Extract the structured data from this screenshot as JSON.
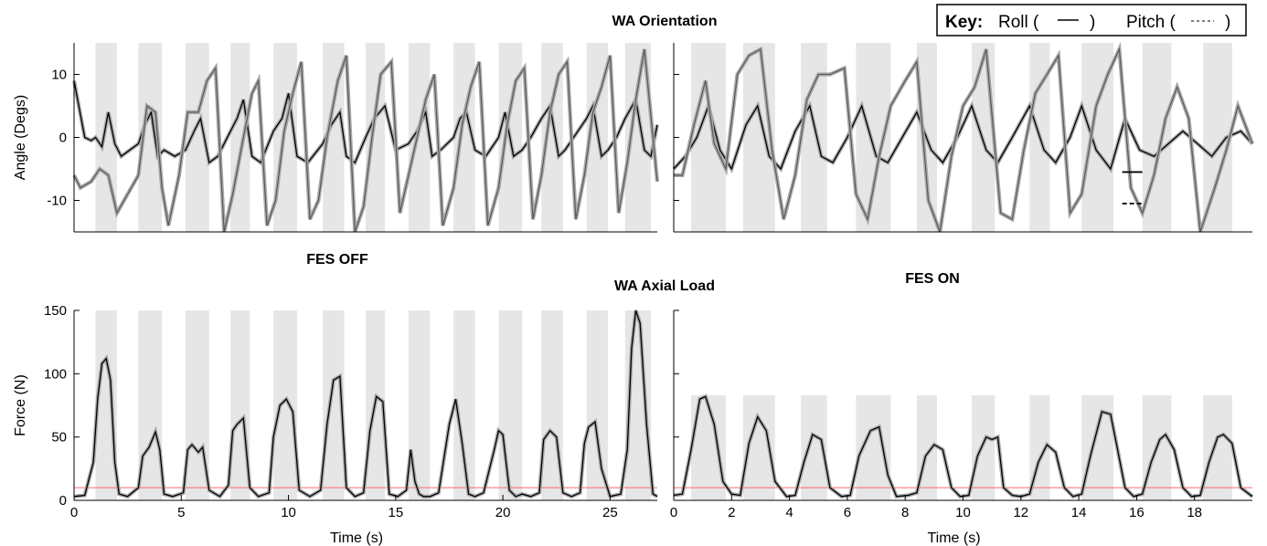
{
  "figure": {
    "orientation_title": "WA Orientation",
    "load_title": "WA Axial Load",
    "fes_off_label": "FES OFF",
    "fes_on_label": "FES ON",
    "key": {
      "label": "Key:",
      "roll_text": "Roll (",
      "roll_close": ")",
      "pitch_text": "Pitch (",
      "pitch_close": ")"
    },
    "colors": {
      "stance_band": "#e6e6e6",
      "roll": "#000000",
      "pitch": "#555555",
      "confidence_band": "#a8a8a8",
      "threshold": "#ff6666"
    }
  },
  "chart_data": [
    {
      "id": "orientation-off",
      "type": "line",
      "ylabel": "Angle (Degs)",
      "xlabel": "",
      "xlim": [
        0,
        27.2
      ],
      "ylim": [
        -15,
        15
      ],
      "yticks": [
        -10,
        0,
        10
      ],
      "xticks": [],
      "stance_bands": [
        [
          1.0,
          2.0
        ],
        [
          3.0,
          4.1
        ],
        [
          5.2,
          6.3
        ],
        [
          7.3,
          8.2
        ],
        [
          9.3,
          10.4
        ],
        [
          11.6,
          12.6
        ],
        [
          13.6,
          14.5
        ],
        [
          15.6,
          16.6
        ],
        [
          17.7,
          18.7
        ],
        [
          19.8,
          20.9
        ],
        [
          21.8,
          22.8
        ],
        [
          23.9,
          24.9
        ],
        [
          25.7,
          26.9
        ]
      ],
      "series": [
        {
          "name": "Roll",
          "x": [
            0,
            0.5,
            0.8,
            1.0,
            1.3,
            1.6,
            1.9,
            2.2,
            2.6,
            3.0,
            3.3,
            3.6,
            3.9,
            4.2,
            4.7,
            5.2,
            5.6,
            5.9,
            6.3,
            6.7,
            7.3,
            7.6,
            7.9,
            8.3,
            8.7,
            9.3,
            9.7,
            10.0,
            10.4,
            10.9,
            11.6,
            12.0,
            12.4,
            12.7,
            13.1,
            13.6,
            14.0,
            14.5,
            15.0,
            15.6,
            16.0,
            16.4,
            16.7,
            17.1,
            17.7,
            18.0,
            18.3,
            18.7,
            19.2,
            19.8,
            20.1,
            20.5,
            20.9,
            21.3,
            21.8,
            22.2,
            22.6,
            22.9,
            23.3,
            23.9,
            24.2,
            24.6,
            24.9,
            25.3,
            25.7,
            26.2,
            26.6,
            26.9,
            27.2
          ],
          "y": [
            9,
            0,
            -0.5,
            0,
            -1.5,
            4,
            -1,
            -3,
            -2,
            -1,
            2,
            4,
            -3,
            -2,
            -3,
            -2,
            1,
            3,
            -4,
            -3,
            1,
            3,
            6,
            -3,
            -4,
            1,
            3,
            7,
            -3,
            -4,
            -1,
            2,
            4,
            -3,
            -4,
            0,
            3,
            5,
            -2,
            -1,
            1,
            4,
            -3,
            -2,
            0,
            3,
            4,
            -2,
            -3,
            0,
            4,
            -3,
            -2,
            0,
            3,
            5,
            -3,
            -2,
            0,
            3,
            5,
            -3,
            -2,
            0,
            3,
            6,
            -2,
            -3,
            2
          ]
        },
        {
          "name": "Pitch",
          "x": [
            0,
            0.3,
            0.8,
            1.2,
            1.6,
            2.0,
            2.5,
            3.0,
            3.4,
            3.8,
            4.1,
            4.4,
            4.9,
            5.3,
            5.8,
            6.2,
            6.6,
            7.0,
            7.4,
            7.9,
            8.3,
            8.6,
            9.0,
            9.4,
            9.8,
            10.2,
            10.6,
            11.0,
            11.4,
            11.8,
            12.3,
            12.7,
            13.1,
            13.5,
            13.9,
            14.3,
            14.8,
            15.2,
            15.6,
            16.0,
            16.4,
            16.8,
            17.2,
            17.7,
            18.1,
            18.5,
            18.9,
            19.3,
            19.8,
            20.2,
            20.6,
            21.0,
            21.4,
            21.8,
            22.2,
            22.6,
            23.0,
            23.4,
            23.8,
            24.2,
            24.6,
            25.0,
            25.4,
            25.8,
            26.2,
            26.6,
            27.0,
            27.2
          ],
          "y": [
            -6,
            -8,
            -7,
            -5,
            -6,
            -12,
            -9,
            -6,
            5,
            4,
            -8,
            -14,
            -6,
            4,
            4,
            9,
            11,
            -15,
            -9,
            0,
            7,
            9,
            -14,
            -10,
            1,
            7,
            12,
            -13,
            -10,
            0,
            9,
            13,
            -15,
            -11,
            0,
            10,
            12,
            -12,
            -6,
            0,
            6,
            10,
            -14,
            -8,
            2,
            8,
            12,
            -14,
            -8,
            2,
            9,
            11,
            -13,
            -6,
            4,
            10,
            12,
            -13,
            -6,
            4,
            8,
            13,
            -12,
            -4,
            6,
            14,
            0,
            -7
          ]
        }
      ]
    },
    {
      "id": "orientation-on",
      "type": "line",
      "ylabel": "",
      "xlabel": "",
      "xlim": [
        0,
        20.0
      ],
      "ylim": [
        -15,
        15
      ],
      "yticks": [
        -10,
        0,
        10
      ],
      "xticks": [],
      "stance_bands": [
        [
          0.6,
          1.8
        ],
        [
          2.4,
          3.5
        ],
        [
          4.4,
          5.3
        ],
        [
          6.3,
          7.5
        ],
        [
          8.4,
          9.1
        ],
        [
          10.3,
          11.1
        ],
        [
          12.3,
          13.0
        ],
        [
          14.1,
          15.2
        ],
        [
          16.2,
          17.2
        ],
        [
          18.3,
          19.3
        ]
      ],
      "series": [
        {
          "name": "Roll",
          "x": [
            0,
            0.4,
            0.8,
            1.2,
            1.6,
            2.0,
            2.5,
            2.9,
            3.3,
            3.7,
            4.2,
            4.7,
            5.1,
            5.5,
            6.0,
            6.5,
            7.0,
            7.4,
            7.9,
            8.4,
            8.9,
            9.3,
            9.8,
            10.3,
            10.8,
            11.2,
            11.7,
            12.3,
            12.8,
            13.2,
            13.7,
            14.1,
            14.6,
            15.1,
            15.6,
            16.1,
            16.6,
            17.1,
            17.6,
            18.1,
            18.6,
            19.1,
            19.6,
            20.0
          ],
          "y": [
            -5,
            -3,
            0,
            5,
            -2,
            -5,
            2,
            5,
            -3,
            -5,
            1,
            5,
            -3,
            -4,
            0,
            5,
            -3,
            -4,
            0,
            4,
            -2,
            -4,
            0,
            5,
            -2,
            -4,
            0,
            5,
            -2,
            -4,
            0,
            5,
            -2,
            -5,
            3,
            -2,
            -3,
            -1,
            1,
            -1,
            -3,
            0,
            1,
            -1
          ]
        },
        {
          "name": "Pitch",
          "x": [
            0,
            0.3,
            0.7,
            1.1,
            1.4,
            1.8,
            2.2,
            2.6,
            3.0,
            3.4,
            3.8,
            4.2,
            4.6,
            5.0,
            5.4,
            5.9,
            6.3,
            6.7,
            7.1,
            7.5,
            8.0,
            8.4,
            8.8,
            9.2,
            9.6,
            10.0,
            10.4,
            10.8,
            11.3,
            11.7,
            12.1,
            12.5,
            12.9,
            13.3,
            13.7,
            14.1,
            14.6,
            15.0,
            15.4,
            15.8,
            16.2,
            16.6,
            17.0,
            17.4,
            17.8,
            18.2,
            18.7,
            19.1,
            19.5,
            20.0
          ],
          "y": [
            -6,
            -6,
            2,
            9,
            -1,
            -5,
            10,
            13,
            14,
            -2,
            -13,
            -6,
            6,
            10,
            10,
            11,
            -9,
            -13,
            -3,
            5,
            9,
            12,
            -10,
            -15,
            -3,
            5,
            8,
            14,
            -12,
            -13,
            -2,
            7,
            10,
            13,
            -12,
            -9,
            5,
            10,
            14,
            -8,
            -12,
            -6,
            3,
            8,
            3,
            -15,
            -8,
            -2,
            5,
            -1
          ]
        }
      ],
      "annotation_marks": [
        {
          "kind": "roll",
          "x": 15.85,
          "y": -5.5
        },
        {
          "kind": "pitch",
          "x": 15.85,
          "y": -10.5
        }
      ]
    },
    {
      "id": "load-off",
      "type": "line",
      "ylabel": "Force (N)",
      "xlabel": "Time (s)",
      "xlim": [
        0,
        27.2
      ],
      "ylim": [
        0,
        150
      ],
      "yticks": [
        0,
        50,
        100,
        150
      ],
      "xticks": [
        0,
        5,
        10,
        15,
        20,
        25
      ],
      "threshold": 10,
      "stance_bands": [
        [
          1.0,
          2.0
        ],
        [
          3.0,
          4.1
        ],
        [
          5.2,
          6.3
        ],
        [
          7.3,
          8.2
        ],
        [
          9.3,
          10.4
        ],
        [
          11.6,
          12.6
        ],
        [
          13.6,
          14.5
        ],
        [
          15.6,
          16.6
        ],
        [
          17.7,
          18.7
        ],
        [
          19.8,
          20.9
        ],
        [
          21.8,
          22.8
        ],
        [
          23.9,
          24.9
        ],
        [
          25.7,
          26.9
        ]
      ],
      "series": [
        {
          "name": "Force",
          "x": [
            0,
            0.5,
            0.9,
            1.1,
            1.3,
            1.5,
            1.7,
            1.9,
            2.1,
            2.5,
            3.0,
            3.2,
            3.5,
            3.8,
            4.0,
            4.2,
            4.6,
            5.1,
            5.3,
            5.5,
            5.8,
            6.0,
            6.3,
            6.8,
            7.2,
            7.4,
            7.6,
            7.9,
            8.2,
            8.6,
            9.1,
            9.3,
            9.6,
            9.9,
            10.2,
            10.5,
            11.0,
            11.5,
            11.8,
            12.1,
            12.4,
            12.7,
            13.1,
            13.5,
            13.8,
            14.1,
            14.4,
            14.7,
            15.1,
            15.5,
            15.7,
            15.9,
            16.1,
            16.3,
            16.6,
            17.0,
            17.5,
            17.8,
            18.1,
            18.4,
            18.7,
            19.1,
            19.6,
            19.8,
            20.0,
            20.3,
            20.6,
            20.9,
            21.3,
            21.7,
            21.9,
            22.2,
            22.5,
            22.8,
            23.2,
            23.6,
            23.8,
            24.0,
            24.3,
            24.6,
            25.0,
            25.5,
            25.8,
            26.0,
            26.2,
            26.4,
            26.7,
            27.0,
            27.2
          ],
          "y": [
            3,
            4,
            30,
            80,
            108,
            112,
            95,
            30,
            5,
            3,
            10,
            35,
            42,
            54,
            40,
            5,
            3,
            6,
            40,
            44,
            38,
            42,
            8,
            3,
            12,
            55,
            60,
            65,
            10,
            3,
            6,
            50,
            75,
            80,
            70,
            8,
            3,
            8,
            60,
            95,
            98,
            10,
            3,
            6,
            55,
            82,
            78,
            5,
            3,
            8,
            40,
            15,
            5,
            3,
            3,
            6,
            60,
            80,
            45,
            5,
            3,
            6,
            40,
            55,
            52,
            8,
            3,
            5,
            3,
            6,
            48,
            55,
            50,
            6,
            3,
            6,
            45,
            58,
            62,
            25,
            3,
            5,
            40,
            120,
            150,
            140,
            60,
            5,
            3
          ]
        }
      ]
    },
    {
      "id": "load-on",
      "type": "line",
      "ylabel": "",
      "xlabel": "Time (s)",
      "xlim": [
        0,
        20.0
      ],
      "ylim": [
        0,
        150
      ],
      "yticks": [
        0,
        50,
        100,
        150
      ],
      "xticks": [
        0,
        2,
        4,
        6,
        8,
        10,
        12,
        14,
        16,
        18
      ],
      "threshold": 10,
      "stance_bands": [
        [
          0.6,
          1.8
        ],
        [
          2.4,
          3.5
        ],
        [
          4.4,
          5.3
        ],
        [
          6.3,
          7.5
        ],
        [
          8.4,
          9.1
        ],
        [
          10.3,
          11.1
        ],
        [
          12.3,
          13.0
        ],
        [
          14.1,
          15.2
        ],
        [
          16.2,
          17.2
        ],
        [
          18.3,
          19.3
        ]
      ],
      "series": [
        {
          "name": "Force",
          "x": [
            0,
            0.3,
            0.6,
            0.9,
            1.1,
            1.4,
            1.7,
            2.0,
            2.3,
            2.6,
            2.9,
            3.2,
            3.5,
            3.9,
            4.2,
            4.5,
            4.8,
            5.1,
            5.4,
            5.8,
            6.1,
            6.4,
            6.8,
            7.1,
            7.4,
            7.7,
            8.1,
            8.4,
            8.7,
            9.0,
            9.3,
            9.6,
            9.9,
            10.2,
            10.5,
            10.8,
            11.0,
            11.2,
            11.4,
            11.7,
            12.0,
            12.3,
            12.6,
            12.9,
            13.2,
            13.5,
            13.8,
            14.1,
            14.4,
            14.8,
            15.1,
            15.3,
            15.6,
            15.9,
            16.2,
            16.5,
            16.8,
            17.0,
            17.3,
            17.6,
            17.9,
            18.2,
            18.5,
            18.8,
            19.0,
            19.3,
            19.6,
            20.0
          ],
          "y": [
            4,
            5,
            40,
            80,
            82,
            60,
            15,
            5,
            4,
            45,
            66,
            55,
            15,
            3,
            4,
            30,
            52,
            48,
            10,
            3,
            4,
            35,
            55,
            58,
            20,
            3,
            4,
            6,
            35,
            44,
            40,
            10,
            3,
            4,
            35,
            50,
            48,
            50,
            10,
            4,
            3,
            5,
            30,
            44,
            38,
            10,
            3,
            5,
            35,
            70,
            68,
            45,
            10,
            3,
            5,
            30,
            48,
            52,
            40,
            10,
            3,
            4,
            30,
            50,
            52,
            45,
            10,
            3
          ]
        }
      ]
    }
  ]
}
